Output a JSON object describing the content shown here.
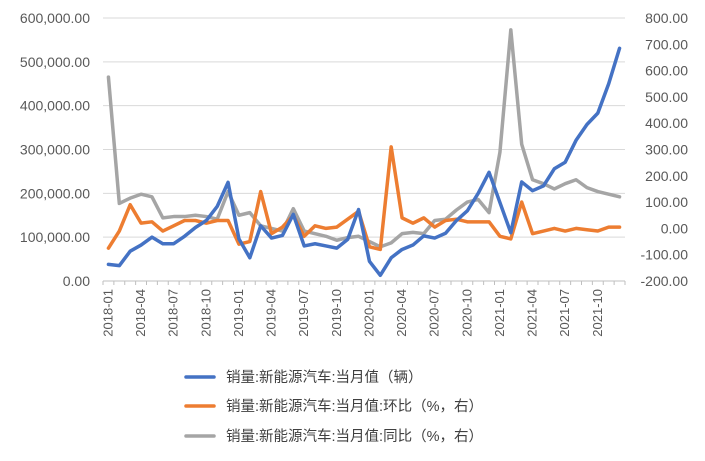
{
  "chart_data": {
    "type": "line",
    "x": [
      "2018-01",
      "2018-02",
      "2018-03",
      "2018-04",
      "2018-05",
      "2018-06",
      "2018-07",
      "2018-08",
      "2018-09",
      "2018-10",
      "2018-11",
      "2018-12",
      "2019-01",
      "2019-02",
      "2019-03",
      "2019-04",
      "2019-05",
      "2019-06",
      "2019-07",
      "2019-08",
      "2019-09",
      "2019-10",
      "2019-11",
      "2019-12",
      "2020-01",
      "2020-02",
      "2020-03",
      "2020-04",
      "2020-05",
      "2020-06",
      "2020-07",
      "2020-08",
      "2020-09",
      "2020-10",
      "2020-11",
      "2020-12",
      "2021-01",
      "2021-02",
      "2021-03",
      "2021-04",
      "2021-05",
      "2021-06",
      "2021-07",
      "2021-08",
      "2021-09",
      "2021-10",
      "2021-11",
      "2021-12"
    ],
    "x_tick_labels": [
      "2018-01",
      "2018-04",
      "2018-07",
      "2018-10",
      "2019-01",
      "2019-04",
      "2019-07",
      "2019-10",
      "2020-01",
      "2020-04",
      "2020-07",
      "2020-10",
      "2021-01",
      "2021-04",
      "2021-07",
      "2021-10"
    ],
    "y_left": {
      "range": [
        0,
        600000
      ],
      "ticks": [
        "0.00",
        "100,000.00",
        "200,000.00",
        "300,000.00",
        "400,000.00",
        "500,000.00",
        "600,000.00"
      ]
    },
    "y_right": {
      "range": [
        -200,
        800
      ],
      "ticks": [
        "-200.00",
        "-100.00",
        "0.00",
        "100.00",
        "200.00",
        "300.00",
        "400.00",
        "500.00",
        "600.00",
        "700.00",
        "800.00"
      ]
    },
    "grid": true,
    "legend_position": "bottom",
    "series": [
      {
        "name": "销量:新能源汽车:当月值（辆）",
        "axis": "left",
        "color": "#4472C4",
        "values": [
          38000,
          35000,
          68000,
          82000,
          100000,
          85000,
          85000,
          102000,
          122000,
          138000,
          170000,
          225000,
          96000,
          53000,
          126000,
          98000,
          104000,
          152000,
          80000,
          85000,
          80000,
          75000,
          95000,
          163000,
          45000,
          13000,
          53000,
          72000,
          82000,
          103000,
          98000,
          109000,
          138000,
          160000,
          200000,
          248000,
          179000,
          110000,
          226000,
          206000,
          217000,
          256000,
          271000,
          321000,
          357000,
          383000,
          450000,
          531000
        ]
      },
      {
        "name": "销量:新能源汽车:当月值:环比（%，右）",
        "axis": "right",
        "color": "#ED7D31",
        "values": [
          -75,
          -10,
          90,
          20,
          25,
          -10,
          10,
          30,
          30,
          20,
          30,
          30,
          -60,
          -50,
          140,
          -20,
          5,
          50,
          -30,
          10,
          0,
          5,
          35,
          65,
          -70,
          -80,
          310,
          40,
          20,
          40,
          5,
          30,
          35,
          25,
          25,
          25,
          -30,
          -40,
          100,
          -20,
          -10,
          0,
          -10,
          0,
          -5,
          -10,
          5,
          5
        ]
      },
      {
        "name": "销量:新能源汽车:当月值:同比（%，右）",
        "axis": "right",
        "color": "#A5A5A5",
        "values": [
          575,
          95,
          115,
          130,
          120,
          40,
          45,
          45,
          50,
          45,
          35,
          140,
          50,
          60,
          10,
          0,
          -10,
          75,
          -10,
          -20,
          -30,
          -45,
          -35,
          -30,
          -50,
          -70,
          -55,
          -20,
          -15,
          -20,
          30,
          35,
          70,
          100,
          110,
          60,
          290,
          755,
          320,
          185,
          170,
          150,
          170,
          185,
          155,
          140,
          130,
          120
        ]
      }
    ]
  }
}
